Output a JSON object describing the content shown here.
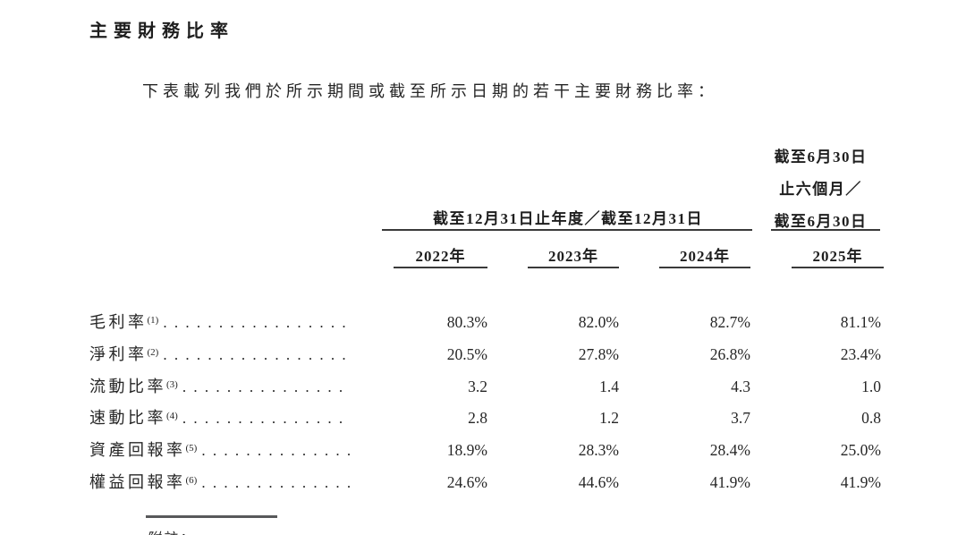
{
  "page": {
    "title": "主要財務比率",
    "intro": "下表載列我們於所示期間或截至所示日期的若干主要財務比率：",
    "footnote_label": "附註："
  },
  "table": {
    "annual_header": "截至12月31日止年度／截至12月31日",
    "interim_header_lines": [
      "截至6月30日",
      "止六個月／",
      "截至6月30日"
    ],
    "year_headers": [
      "2022年",
      "2023年",
      "2024年",
      "2025年"
    ],
    "leader_dots": ". . . . . . . . . . . . . . . . . . . . . . . . . . . . . . . . . . . .",
    "rows": [
      {
        "label": "毛利率",
        "note": "(1)",
        "values": [
          "80.3%",
          "82.0%",
          "82.7%",
          "81.1%"
        ]
      },
      {
        "label": "淨利率",
        "note": "(2)",
        "values": [
          "20.5%",
          "27.8%",
          "26.8%",
          "23.4%"
        ]
      },
      {
        "label": "流動比率",
        "note": "(3)",
        "values": [
          "3.2",
          "1.4",
          "4.3",
          "1.0"
        ]
      },
      {
        "label": "速動比率",
        "note": "(4)",
        "values": [
          "2.8",
          "1.2",
          "3.7",
          "0.8"
        ]
      },
      {
        "label": "資產回報率",
        "note": "(5)",
        "values": [
          "18.9%",
          "28.3%",
          "28.4%",
          "25.0%"
        ]
      },
      {
        "label": "權益回報率",
        "note": "(6)",
        "values": [
          "24.6%",
          "44.6%",
          "41.9%",
          "41.9%"
        ]
      }
    ]
  },
  "colors": {
    "text": "#262626",
    "heading": "#1e1e1e",
    "table_rule": "#3a3a3a",
    "footnote_rule": "#58595b",
    "background": "#ffffff"
  }
}
